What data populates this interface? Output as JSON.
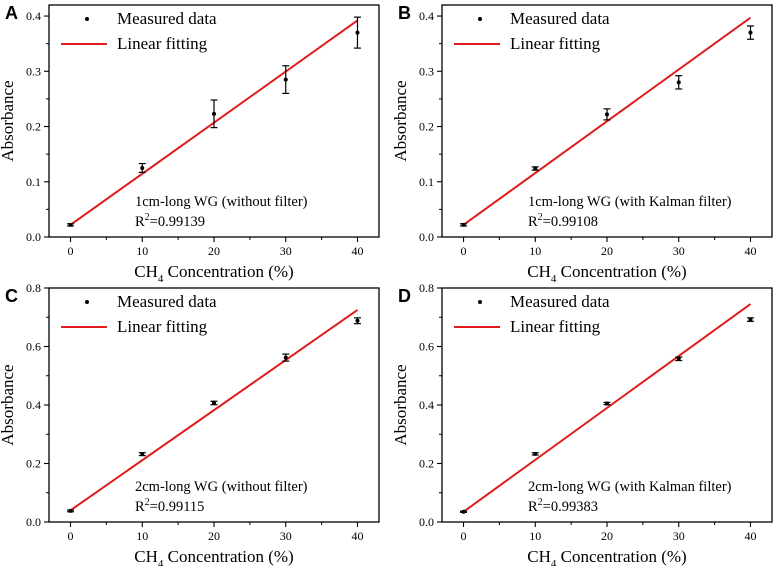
{
  "colors": {
    "fit_line": "#e01b1b",
    "marker": "#000000",
    "axis": "#000000"
  },
  "chart_data": [
    {
      "panel_label": "A",
      "type": "scatter",
      "title": "",
      "xlabel": "CH₄ Concentration (%)",
      "xlabel_main": "CH",
      "xlabel_sub": "4",
      "xlabel_rest": " Concentration (%)",
      "ylabel": "Absorbance",
      "xlim": [
        -3,
        43
      ],
      "ylim": [
        0,
        0.42
      ],
      "xticks": [
        0,
        10,
        20,
        30,
        40
      ],
      "yticks": [
        0.0,
        0.1,
        0.2,
        0.3,
        0.4
      ],
      "ytick_labels": [
        "0.0",
        "0.1",
        "0.2",
        "0.3",
        "0.4"
      ],
      "grid": false,
      "legend": {
        "position": "top-left",
        "entries": [
          "Measured data",
          "Linear fitting"
        ]
      },
      "series": [
        {
          "name": "Measured data",
          "kind": "points_with_error",
          "x": [
            0,
            10,
            20,
            30,
            40
          ],
          "y": [
            0.022,
            0.125,
            0.223,
            0.285,
            0.37
          ],
          "yerr": [
            0.002,
            0.008,
            0.025,
            0.025,
            0.028
          ]
        },
        {
          "name": "Linear fitting",
          "kind": "line",
          "x": [
            0,
            40
          ],
          "y": [
            0.022,
            0.392
          ]
        }
      ],
      "annotation": {
        "line1": "1cm-long WG (without filter)",
        "r2_prefix": "R",
        "r2_sup": "2",
        "r2_value": "=0.99139"
      }
    },
    {
      "panel_label": "B",
      "type": "scatter",
      "title": "",
      "xlabel": "CH₄ Concentration (%)",
      "xlabel_main": "CH",
      "xlabel_sub": "4",
      "xlabel_rest": " Concentration (%)",
      "ylabel": "Absorbance",
      "xlim": [
        -3,
        43
      ],
      "ylim": [
        0,
        0.42
      ],
      "xticks": [
        0,
        10,
        20,
        30,
        40
      ],
      "yticks": [
        0.0,
        0.1,
        0.2,
        0.3,
        0.4
      ],
      "ytick_labels": [
        "0.0",
        "0.1",
        "0.2",
        "0.3",
        "0.4"
      ],
      "grid": false,
      "legend": {
        "position": "top-left",
        "entries": [
          "Measured data",
          "Linear fitting"
        ]
      },
      "series": [
        {
          "name": "Measured data",
          "kind": "points_with_error",
          "x": [
            0,
            10,
            20,
            30,
            40
          ],
          "y": [
            0.022,
            0.124,
            0.222,
            0.28,
            0.37
          ],
          "yerr": [
            0.002,
            0.003,
            0.01,
            0.012,
            0.012
          ]
        },
        {
          "name": "Linear fitting",
          "kind": "line",
          "x": [
            0,
            40
          ],
          "y": [
            0.022,
            0.397
          ]
        }
      ],
      "annotation": {
        "line1": "1cm-long WG (with Kalman filter)",
        "r2_prefix": "R",
        "r2_sup": "2",
        "r2_value": "=0.99108"
      }
    },
    {
      "panel_label": "C",
      "type": "scatter",
      "title": "",
      "xlabel": "CH₄ Concentration (%)",
      "xlabel_main": "CH",
      "xlabel_sub": "4",
      "xlabel_rest": " Concentration (%)",
      "ylabel": "Absorbance",
      "xlim": [
        -3,
        43
      ],
      "ylim": [
        0,
        0.8
      ],
      "xticks": [
        0,
        10,
        20,
        30,
        40
      ],
      "yticks": [
        0.0,
        0.2,
        0.4,
        0.6,
        0.8
      ],
      "ytick_labels": [
        "0.0",
        "0.2",
        "0.4",
        "0.6",
        "0.8"
      ],
      "grid": false,
      "legend": {
        "position": "top-left",
        "entries": [
          "Measured data",
          "Linear fitting"
        ]
      },
      "series": [
        {
          "name": "Measured data",
          "kind": "points_with_error",
          "x": [
            0,
            10,
            20,
            30,
            40
          ],
          "y": [
            0.038,
            0.232,
            0.407,
            0.562,
            0.688
          ],
          "yerr": [
            0.003,
            0.005,
            0.006,
            0.012,
            0.01
          ]
        },
        {
          "name": "Linear fitting",
          "kind": "line",
          "x": [
            0,
            40
          ],
          "y": [
            0.04,
            0.725
          ]
        }
      ],
      "annotation": {
        "line1": "2cm-long WG (without filter)",
        "r2_prefix": "R",
        "r2_sup": "2",
        "r2_value": "=0.99115"
      }
    },
    {
      "panel_label": "D",
      "type": "scatter",
      "title": "",
      "xlabel": "CH₄ Concentration (%)",
      "xlabel_main": "CH",
      "xlabel_sub": "4",
      "xlabel_rest": " Concentration (%)",
      "ylabel": "Absorbance",
      "xlim": [
        -3,
        43
      ],
      "ylim": [
        0,
        0.8
      ],
      "xticks": [
        0,
        10,
        20,
        30,
        40
      ],
      "yticks": [
        0.0,
        0.2,
        0.4,
        0.6,
        0.8
      ],
      "ytick_labels": [
        "0.0",
        "0.2",
        "0.4",
        "0.6",
        "0.8"
      ],
      "grid": false,
      "legend": {
        "position": "top-left",
        "entries": [
          "Measured data",
          "Linear fitting"
        ]
      },
      "series": [
        {
          "name": "Measured data",
          "kind": "points_with_error",
          "x": [
            0,
            10,
            20,
            30,
            40
          ],
          "y": [
            0.035,
            0.233,
            0.405,
            0.558,
            0.692
          ],
          "yerr": [
            0.002,
            0.004,
            0.004,
            0.006,
            0.006
          ]
        },
        {
          "name": "Linear fitting",
          "kind": "line",
          "x": [
            0,
            40
          ],
          "y": [
            0.035,
            0.745
          ]
        }
      ],
      "annotation": {
        "line1": "2cm-long WG (with Kalman filter)",
        "r2_prefix": "R",
        "r2_sup": "2",
        "r2_value": "=0.99383"
      }
    }
  ]
}
